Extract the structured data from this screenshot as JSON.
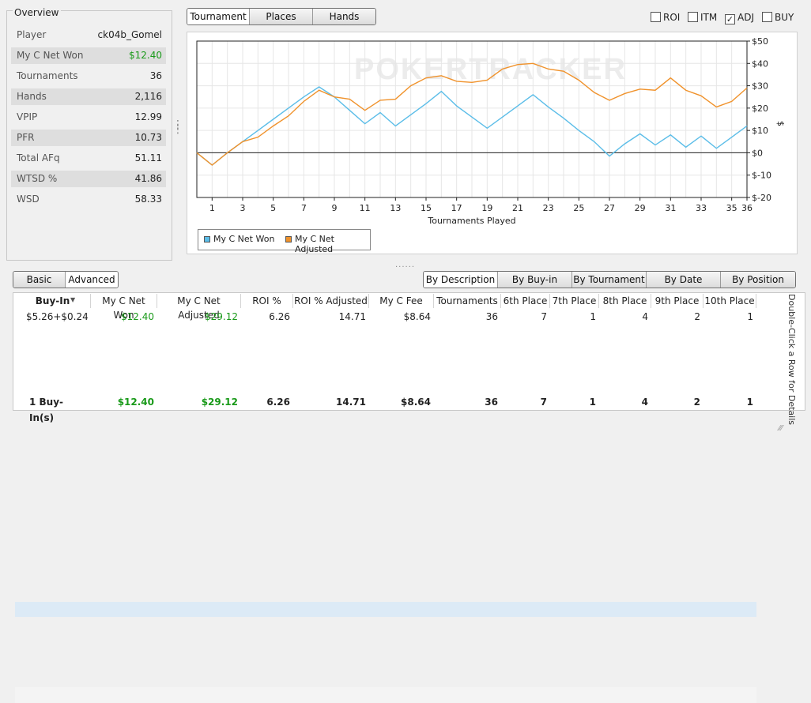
{
  "overview": {
    "title": "Overview",
    "stats": [
      {
        "label": "Player",
        "value": "ck04b_Gomel",
        "green": false
      },
      {
        "label": "My C Net Won",
        "value": "$12.40",
        "green": true
      },
      {
        "label": "Tournaments",
        "value": "36",
        "green": false
      },
      {
        "label": "Hands",
        "value": "2,116",
        "green": false
      },
      {
        "label": "VPIP",
        "value": "12.99",
        "green": false
      },
      {
        "label": "PFR",
        "value": "10.73",
        "green": false
      },
      {
        "label": "Total AFq",
        "value": "51.11",
        "green": false
      },
      {
        "label": "WTSD %",
        "value": "41.86",
        "green": false
      },
      {
        "label": "WSD",
        "value": "58.33",
        "green": false
      }
    ]
  },
  "graph_tabs": [
    "Tournament",
    "Places",
    "Hands"
  ],
  "options": [
    {
      "label": "ROI",
      "checked": false
    },
    {
      "label": "ITM",
      "checked": false
    },
    {
      "label": "ADJ",
      "checked": true
    },
    {
      "label": "BUY",
      "checked": false
    }
  ],
  "watermark": "POKERTRACKER",
  "chart_data": {
    "type": "line",
    "xlabel": "Tournaments Played",
    "ylabel": "$",
    "xlim": [
      0,
      36
    ],
    "ylim": [
      -20,
      50
    ],
    "y_ticks": [
      50,
      40,
      30,
      20,
      10,
      0,
      -10,
      -20
    ],
    "y_tick_labels": [
      "$50",
      "$40",
      "$30",
      "$20",
      "$10",
      "$0",
      "$-10",
      "$-20"
    ],
    "x_ticks": [
      1,
      3,
      5,
      7,
      9,
      11,
      13,
      15,
      17,
      19,
      21,
      23,
      25,
      27,
      29,
      31,
      33,
      35,
      36
    ],
    "grid": true,
    "legend": "bottom-left",
    "series": [
      {
        "name": "My C Net Won",
        "color": "#5bbde8",
        "x": [
          0,
          1,
          2,
          3,
          4,
          5,
          6,
          7,
          8,
          9,
          10,
          11,
          12,
          13,
          14,
          15,
          16,
          17,
          18,
          19,
          20,
          21,
          22,
          23,
          24,
          25,
          26,
          27,
          28,
          29,
          30,
          31,
          32,
          33,
          34,
          35,
          36
        ],
        "y": [
          0,
          -5.5,
          0,
          5,
          10,
          15,
          20,
          25,
          29.5,
          25,
          19,
          13,
          18,
          12,
          17,
          22,
          27.5,
          21,
          16,
          11,
          16,
          21,
          26,
          20.5,
          15.5,
          10,
          5,
          -1.5,
          4,
          8.5,
          3.5,
          8,
          2.5,
          7.5,
          2,
          7,
          12
        ]
      },
      {
        "name": "My C Net Adjusted",
        "color": "#f0922b",
        "x": [
          0,
          1,
          2,
          3,
          4,
          5,
          6,
          7,
          8,
          9,
          10,
          11,
          12,
          13,
          14,
          15,
          16,
          17,
          18,
          19,
          20,
          21,
          22,
          23,
          24,
          25,
          26,
          27,
          28,
          29,
          30,
          31,
          32,
          33,
          34,
          35,
          36
        ],
        "y": [
          0,
          -5.5,
          0,
          5,
          7,
          12,
          16.5,
          23,
          28,
          25,
          24,
          19,
          23.5,
          24,
          30,
          33.5,
          34.5,
          32,
          31.5,
          32.5,
          37.5,
          39.5,
          40,
          37.5,
          36.5,
          32.5,
          27,
          23.5,
          26.5,
          28.5,
          28,
          33.5,
          28,
          25.5,
          20.5,
          23,
          29
        ]
      }
    ]
  },
  "legend_items": [
    "My C Net Won",
    "My C Net Adjusted"
  ],
  "view_tabs": [
    "Basic",
    "Advanced"
  ],
  "group_tabs": [
    "By Description",
    "By Buy-in",
    "By Tournament",
    "By Date",
    "By Position"
  ],
  "table": {
    "columns": [
      "Buy-In",
      "My C Net Won",
      "My C Net Adjusted",
      "ROI %",
      "ROI % Adjusted",
      "My C Fee",
      "Tournaments",
      "6th Place",
      "7th Place",
      "8th Place",
      "9th Place",
      "10th Place"
    ],
    "rows": [
      [
        "$5.26+$0.24",
        "$12.40",
        "$29.12",
        "6.26",
        "14.71",
        "$8.64",
        "36",
        "7",
        "1",
        "4",
        "2",
        "1"
      ]
    ],
    "footer": [
      "1 Buy-In(s)",
      "$12.40",
      "$29.12",
      "6.26",
      "14.71",
      "$8.64",
      "36",
      "7",
      "1",
      "4",
      "2",
      "1"
    ],
    "hint": "Double-Click a Row for Details"
  }
}
